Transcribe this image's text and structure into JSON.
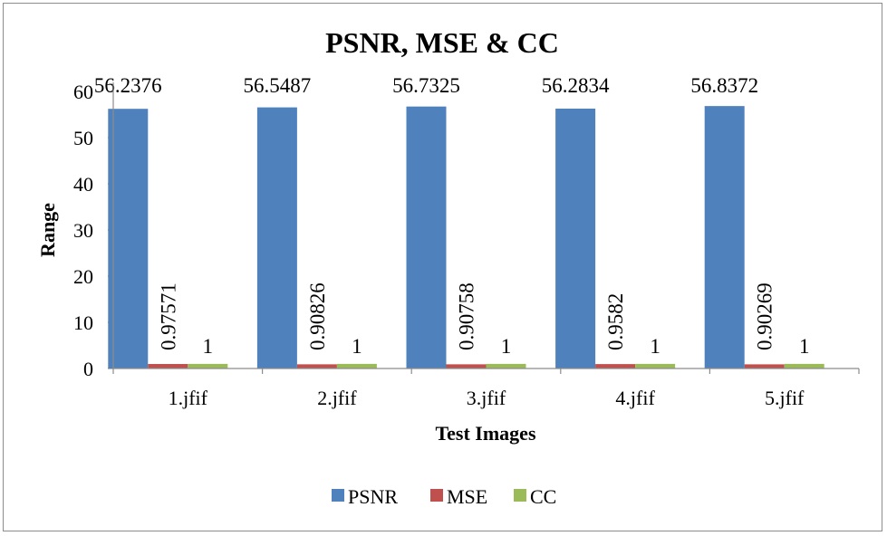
{
  "chart_data": {
    "type": "bar",
    "title": "PSNR, MSE & CC",
    "xlabel": "Test Images",
    "ylabel": "Range",
    "categories": [
      "1.jfif",
      "2.jfif",
      "3.jfif",
      "4.jfif",
      "5.jfif"
    ],
    "series": [
      {
        "name": "PSNR",
        "values": [
          56.2376,
          56.5487,
          56.7325,
          56.2834,
          56.8372
        ],
        "labels": [
          "56.2376",
          "56.5487",
          "56.7325",
          "56.2834",
          "56.8372"
        ],
        "color": "#4F81BD",
        "label_orientation": "horizontal"
      },
      {
        "name": "MSE",
        "values": [
          0.97571,
          0.90826,
          0.90758,
          0.9582,
          0.90269
        ],
        "labels": [
          "0.97571",
          "0.90826",
          "0.90758",
          "0.9582",
          "0.90269"
        ],
        "color": "#C0504D",
        "label_orientation": "vertical"
      },
      {
        "name": "CC",
        "values": [
          1,
          1,
          1,
          1,
          1
        ],
        "labels": [
          "1",
          "1",
          "1",
          "1",
          "1"
        ],
        "color": "#9BBB59",
        "label_orientation": "horizontal"
      }
    ],
    "ylim": [
      0,
      60
    ],
    "yticks": [
      "0",
      "10",
      "20",
      "30",
      "40",
      "50",
      "60"
    ],
    "grid": false,
    "legend": "bottom"
  }
}
